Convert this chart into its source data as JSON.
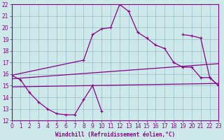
{
  "title": "Windchill (Refroidissement éolien,°C)",
  "bg_color": "#cce8e8",
  "grid_color": "#99bbcc",
  "line_color": "#880088",
  "xlim_min": 0,
  "xlim_max": 23,
  "ylim_min": 12,
  "ylim_max": 22,
  "xticks": [
    0,
    1,
    2,
    3,
    4,
    5,
    6,
    7,
    8,
    9,
    10,
    11,
    12,
    13,
    14,
    15,
    16,
    17,
    18,
    19,
    20,
    21,
    22,
    23
  ],
  "yticks": [
    12,
    13,
    14,
    15,
    16,
    17,
    18,
    19,
    20,
    21,
    22
  ],
  "curve_high": {
    "x": [
      0,
      8,
      9,
      10,
      11,
      12,
      13,
      14,
      15,
      16,
      17,
      18,
      19,
      20,
      21,
      22,
      23
    ],
    "y": [
      15.9,
      17.2,
      19.4,
      19.9,
      20.0,
      22.0,
      21.4,
      19.6,
      19.1,
      18.5,
      18.2,
      17.0,
      16.6,
      16.6,
      15.7,
      15.7,
      15.0
    ]
  },
  "curve_low": {
    "x": [
      0,
      1,
      2,
      3,
      4,
      5,
      6,
      7,
      8,
      9,
      10,
      19,
      20,
      21,
      22,
      23
    ],
    "y": [
      15.9,
      15.5,
      14.4,
      13.6,
      13.0,
      12.6,
      12.5,
      12.5,
      13.8,
      15.0,
      12.8,
      19.4,
      19.3,
      19.1,
      15.7,
      15.0
    ]
  },
  "trend_upper": {
    "x": [
      0,
      23
    ],
    "y": [
      15.6,
      16.9
    ]
  },
  "trend_lower": {
    "x": [
      0,
      23
    ],
    "y": [
      14.9,
      15.2
    ]
  }
}
